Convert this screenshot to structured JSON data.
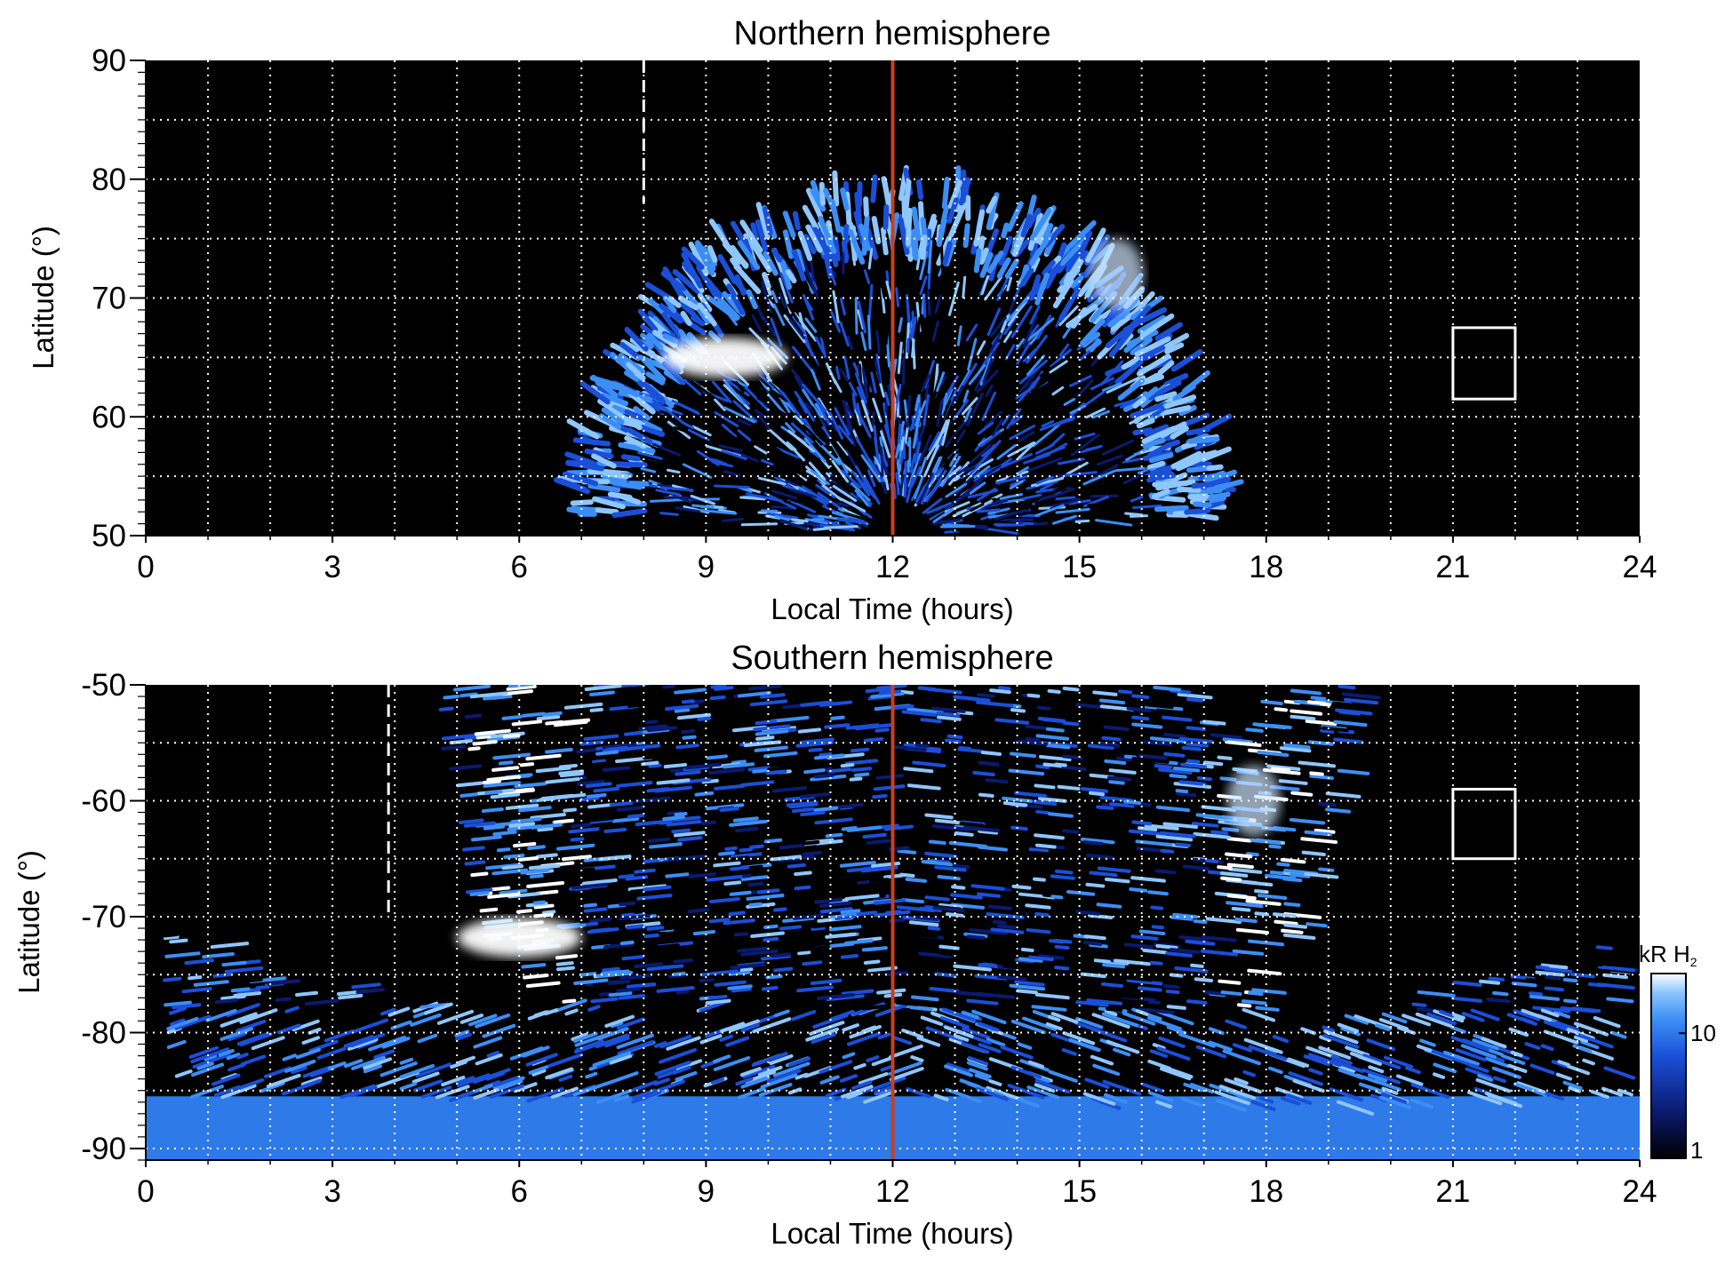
{
  "chart_data": [
    {
      "type": "heatmap",
      "title": "Northern hemisphere",
      "xlabel": "Local Time (hours)",
      "ylabel": "Latitude (°)",
      "xlim": [
        0,
        24
      ],
      "ylim": [
        50,
        90
      ],
      "xticks": [
        "0",
        "3",
        "6",
        "9",
        "12",
        "15",
        "18",
        "21",
        "24"
      ],
      "yticks": [
        "50",
        "60",
        "70",
        "80",
        "90"
      ],
      "grid": true,
      "reference_line": {
        "x": 12,
        "color": "#c8401e"
      },
      "dashed_line": {
        "x": 8.0,
        "color": "#ffffff"
      },
      "box": {
        "x": [
          21.0,
          22.0
        ],
        "y": [
          61.5,
          67.5
        ]
      },
      "emission_region": {
        "lt_range": [
          7.0,
          17.2
        ],
        "outer_lat_at_noon": 79
      },
      "bright_spots": [
        {
          "lt": 9.3,
          "lat": 65,
          "level": "high"
        },
        {
          "lt": 15.6,
          "lat": 72,
          "level": "medium"
        }
      ]
    },
    {
      "type": "heatmap",
      "title": "Southern hemisphere",
      "xlabel": "Local Time (hours)",
      "ylabel": "Latitude (°)",
      "xlim": [
        0,
        24
      ],
      "ylim": [
        -91,
        -50
      ],
      "xticks": [
        "0",
        "3",
        "6",
        "9",
        "12",
        "15",
        "18",
        "21",
        "24"
      ],
      "yticks": [
        "-90",
        "-80",
        "-70",
        "-60",
        "-50"
      ],
      "grid": true,
      "reference_line": {
        "x": 12,
        "color": "#c8401e"
      },
      "dashed_line": {
        "x": 3.9,
        "color": "#ffffff"
      },
      "box": {
        "x": [
          21.0,
          22.0
        ],
        "y": [
          -65,
          -59
        ]
      },
      "bright_spots": [
        {
          "lt": 6.0,
          "lat": -71.8,
          "level": "high"
        },
        {
          "lt": 17.8,
          "lat": -60,
          "level": "medium"
        }
      ]
    }
  ],
  "colorbar": {
    "label_main": "kR H",
    "label_sub": "2",
    "ticks": [
      "1",
      "10"
    ],
    "scale": "log",
    "range": [
      1,
      30
    ],
    "colors": [
      "#000000",
      "#0a1a6e",
      "#1a4fd8",
      "#3c8ef5",
      "#8ec6ff",
      "#ffffff"
    ]
  }
}
